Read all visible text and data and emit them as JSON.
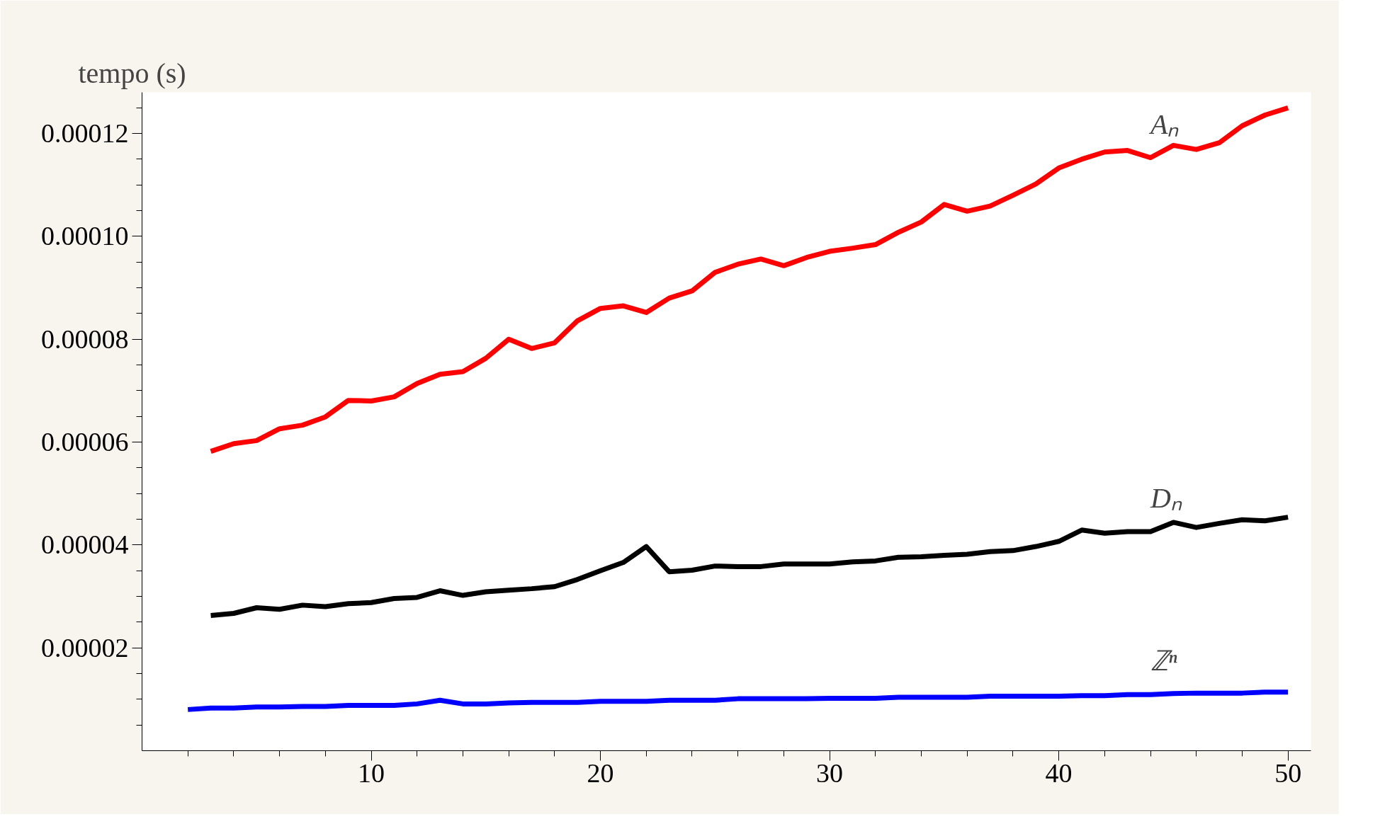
{
  "chart_data": {
    "type": "line",
    "ylabel": "tempo (s)",
    "legend": false,
    "grid": false,
    "line_style": "solid",
    "marker": "none",
    "xlim": [
      0,
      51
    ],
    "xticks": [
      10,
      20,
      30,
      40,
      50
    ],
    "ylim": [
      0,
      0.000128
    ],
    "yticks": [
      {
        "value": 2e-05,
        "label": "0.00002"
      },
      {
        "value": 4e-05,
        "label": "0.00004"
      },
      {
        "value": 6e-05,
        "label": "0.00006"
      },
      {
        "value": 8e-05,
        "label": "0.00008"
      },
      {
        "value": 0.0001,
        "label": "0.00010"
      },
      {
        "value": 0.00012,
        "label": "0.00012"
      }
    ],
    "series": [
      {
        "name": "Aₙ",
        "color": "#ff0000",
        "x": [
          3,
          4,
          5,
          6,
          7,
          8,
          9,
          10,
          11,
          12,
          13,
          14,
          15,
          16,
          17,
          18,
          19,
          20,
          21,
          22,
          23,
          24,
          25,
          26,
          27,
          28,
          29,
          30,
          31,
          32,
          33,
          34,
          35,
          36,
          37,
          38,
          39,
          40,
          41,
          42,
          43,
          44,
          45,
          46,
          47,
          48,
          49,
          50
        ],
        "values": [
          5.82e-05,
          5.97e-05,
          6.03e-05,
          6.26e-05,
          6.33e-05,
          6.49e-05,
          6.81e-05,
          6.8e-05,
          6.88e-05,
          7.14e-05,
          7.32e-05,
          7.37e-05,
          7.63e-05,
          8e-05,
          7.82e-05,
          7.93e-05,
          8.36e-05,
          8.6e-05,
          8.65e-05,
          8.52e-05,
          8.8e-05,
          8.94e-05,
          9.3e-05,
          9.46e-05,
          9.56e-05,
          9.43e-05,
          9.59e-05,
          9.71e-05,
          9.77e-05,
          9.84e-05,
          0.0001008,
          0.0001028,
          0.0001062,
          0.0001049,
          0.0001059,
          0.000108,
          0.0001102,
          0.0001133,
          0.000115,
          0.0001164,
          0.0001167,
          0.0001153,
          0.0001177,
          0.0001169,
          0.0001182,
          0.0001215,
          0.0001236,
          0.000125
        ]
      },
      {
        "name": "Dₙ",
        "color": "#000000",
        "x": [
          3,
          4,
          5,
          6,
          7,
          8,
          9,
          10,
          11,
          12,
          13,
          14,
          15,
          16,
          17,
          18,
          19,
          20,
          21,
          22,
          23,
          24,
          25,
          26,
          27,
          28,
          29,
          30,
          31,
          32,
          33,
          34,
          35,
          36,
          37,
          38,
          39,
          40,
          41,
          42,
          43,
          44,
          45,
          46,
          47,
          48,
          49,
          50
        ],
        "values": [
          2.63e-05,
          2.67e-05,
          2.78e-05,
          2.75e-05,
          2.83e-05,
          2.8e-05,
          2.86e-05,
          2.88e-05,
          2.96e-05,
          2.98e-05,
          3.11e-05,
          3.02e-05,
          3.09e-05,
          3.12e-05,
          3.15e-05,
          3.19e-05,
          3.33e-05,
          3.5e-05,
          3.66e-05,
          3.97e-05,
          3.48e-05,
          3.51e-05,
          3.59e-05,
          3.58e-05,
          3.58e-05,
          3.63e-05,
          3.63e-05,
          3.63e-05,
          3.67e-05,
          3.69e-05,
          3.76e-05,
          3.77e-05,
          3.8e-05,
          3.82e-05,
          3.87e-05,
          3.89e-05,
          3.97e-05,
          4.07e-05,
          4.29e-05,
          4.23e-05,
          4.26e-05,
          4.26e-05,
          4.44e-05,
          4.34e-05,
          4.42e-05,
          4.49e-05,
          4.47e-05,
          4.54e-05
        ]
      },
      {
        "name": "ℤⁿ",
        "color": "#0000ff",
        "x": [
          2,
          3,
          4,
          5,
          6,
          7,
          8,
          9,
          10,
          11,
          12,
          13,
          14,
          15,
          16,
          17,
          18,
          19,
          20,
          21,
          22,
          23,
          24,
          25,
          26,
          27,
          28,
          29,
          30,
          31,
          32,
          33,
          34,
          35,
          36,
          37,
          38,
          39,
          40,
          41,
          42,
          43,
          44,
          45,
          46,
          47,
          48,
          49,
          50
        ],
        "values": [
          8e-06,
          8.3e-06,
          8.3e-06,
          8.5e-06,
          8.5e-06,
          8.6e-06,
          8.6e-06,
          8.8e-06,
          8.8e-06,
          8.8e-06,
          9.1e-06,
          9.8e-06,
          9.1e-06,
          9.1e-06,
          9.3e-06,
          9.4e-06,
          9.4e-06,
          9.4e-06,
          9.6e-06,
          9.6e-06,
          9.6e-06,
          9.8e-06,
          9.8e-06,
          9.8e-06,
          1.01e-05,
          1.01e-05,
          1.01e-05,
          1.01e-05,
          1.02e-05,
          1.02e-05,
          1.02e-05,
          1.04e-05,
          1.04e-05,
          1.04e-05,
          1.04e-05,
          1.06e-05,
          1.06e-05,
          1.06e-05,
          1.06e-05,
          1.07e-05,
          1.07e-05,
          1.09e-05,
          1.09e-05,
          1.11e-05,
          1.12e-05,
          1.12e-05,
          1.12e-05,
          1.14e-05,
          1.14e-05
        ]
      }
    ]
  }
}
